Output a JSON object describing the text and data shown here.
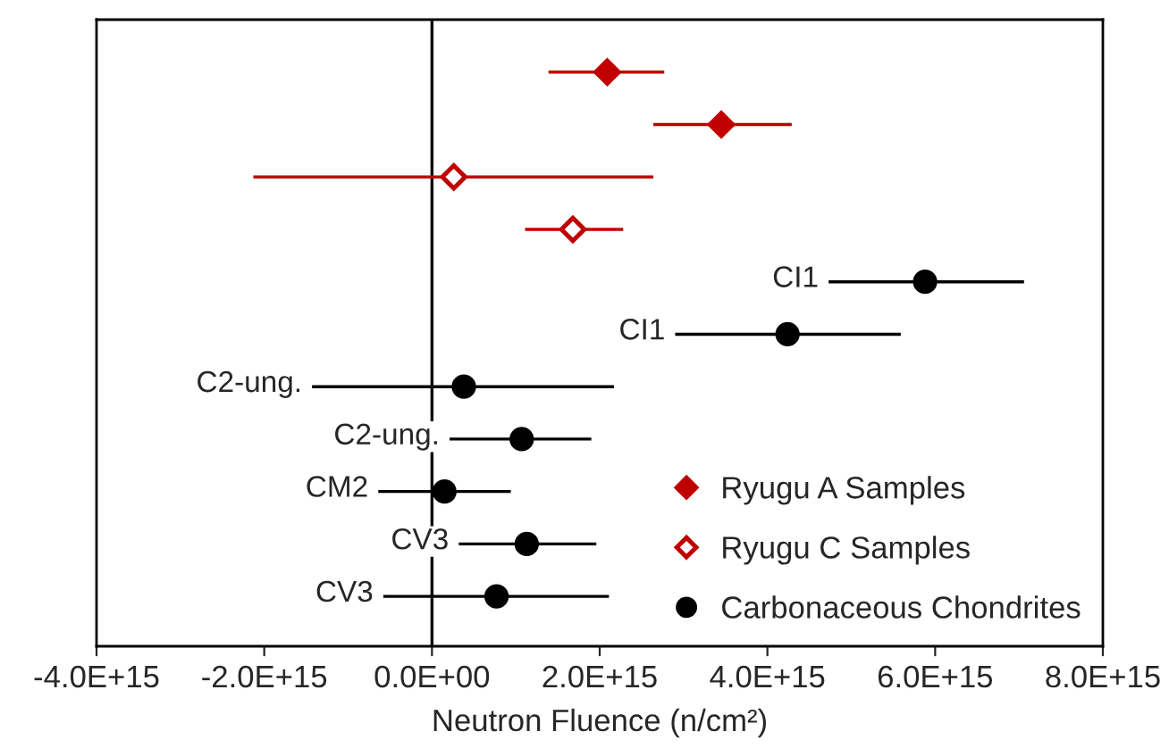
{
  "chart_data": {
    "type": "scatter",
    "orientation": "horizontal",
    "xlabel": "Neutron Fluence (n/cm²)",
    "categories": [
      null,
      null,
      null,
      null,
      null,
      null,
      null,
      null,
      null,
      null,
      null
    ],
    "xlim": [
      -4000000000000000.0,
      8000000000000000.0
    ],
    "xticks": [
      {
        "value": -4000000000000000.0,
        "label": "-4.0E+15"
      },
      {
        "value": -2000000000000000.0,
        "label": "-2.0E+15"
      },
      {
        "value": 0,
        "label": "0.0E+00"
      },
      {
        "value": 2000000000000000.0,
        "label": "2.0E+15"
      },
      {
        "value": 4000000000000000.0,
        "label": "4.0E+15"
      },
      {
        "value": 6000000000000000.0,
        "label": "6.0E+15"
      },
      {
        "value": 8000000000000000.0,
        "label": "8.0E+15"
      }
    ],
    "tick_labels": "x",
    "grid": false,
    "legend": "bottom right",
    "ref_lines": [
      {
        "axis": "x",
        "value": 0,
        "color": "#000000"
      }
    ],
    "series": [
      {
        "name": "Ryugu A Samples",
        "color": "#c00000",
        "marker": "diamond",
        "values": [
          2090000000000000.0,
          3450000000000000.0,
          null,
          null,
          null,
          null,
          null,
          null,
          null,
          null,
          null
        ],
        "errors": [
          [
            1390000000000000.0,
            2770000000000000.0
          ],
          [
            2640000000000000.0,
            4290000000000000.0
          ],
          null,
          null,
          null,
          null,
          null,
          null,
          null,
          null,
          null
        ]
      },
      {
        "name": "Ryugu C Samples",
        "color": "#c00000",
        "marker": "diamond",
        "values": [
          null,
          null,
          260000000000000.0,
          1680000000000000.0,
          null,
          null,
          null,
          null,
          null,
          null,
          null
        ],
        "errors": [
          null,
          null,
          [
            -2130000000000000.0,
            2640000000000000.0
          ],
          [
            1110000000000000.0,
            2280000000000000.0
          ],
          null,
          null,
          null,
          null,
          null,
          null,
          null
        ]
      },
      {
        "name": "Carbonaceous Chondrites",
        "color": "#000000",
        "marker": "circle",
        "values": [
          null,
          null,
          null,
          null,
          5880000000000000.0,
          4240000000000000.0,
          380000000000000.0,
          1070000000000000.0,
          150000000000000.0,
          1130000000000000.0,
          770000000000000.0
        ],
        "errors": [
          null,
          null,
          null,
          null,
          [
            4730000000000000.0,
            7060000000000000.0
          ],
          [
            2900000000000000.0,
            5590000000000000.0
          ],
          [
            -1430000000000000.0,
            2170000000000000.0
          ],
          [
            210000000000000.0,
            1900000000000000.0
          ],
          [
            -640000000000000.0,
            940000000000000.0
          ],
          [
            320000000000000.0,
            1960000000000000.0
          ],
          [
            -580000000000000.0,
            2110000000000000.0
          ]
        ]
      }
    ],
    "annotations": [
      "CI1",
      "CI1",
      "C2-ung.",
      "C2-ung.",
      "CM2",
      "CV3",
      "CV3"
    ]
  }
}
